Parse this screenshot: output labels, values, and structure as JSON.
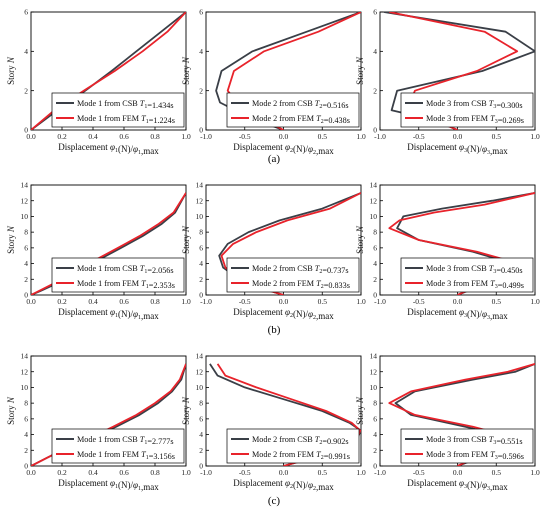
{
  "colors": {
    "csb": "#3a3f47",
    "fem": "#e8232b"
  },
  "chart_data": [
    {
      "type": "line",
      "panel": "a",
      "mode": 1,
      "ylabel": "Story N",
      "xlabel": "Displacement φ1(N)/φ1,max",
      "xlim": [
        0,
        1
      ],
      "ylim": [
        0,
        6
      ],
      "xticks": [
        "0.0",
        "0.2",
        "0.4",
        "0.6",
        "0.8",
        "1.0"
      ],
      "yticks": [
        "0",
        "2",
        "4",
        "6"
      ],
      "series": [
        {
          "name": "Mode 1 from CSB T1=1.434s",
          "kind": "csb",
          "x": [
            0,
            0.17,
            0.35,
            0.52,
            0.68,
            0.84,
            1.0
          ],
          "y": [
            0,
            1,
            2,
            3,
            4,
            5,
            6
          ]
        },
        {
          "name": "Mode 1 from FEM T1=1.224s",
          "kind": "fem",
          "x": [
            0,
            0.15,
            0.34,
            0.54,
            0.72,
            0.88,
            1.0
          ],
          "y": [
            0,
            1,
            2,
            3,
            4,
            5,
            6
          ]
        }
      ]
    },
    {
      "type": "line",
      "panel": "a",
      "mode": 2,
      "ylabel": "Story N",
      "xlabel": "Displacement φ2(N)/φ2,max",
      "xlim": [
        -1,
        1
      ],
      "ylim": [
        0,
        6
      ],
      "xticks": [
        "-1.0",
        "-0.5",
        "0.0",
        "0.5",
        "1.0"
      ],
      "yticks": [
        "0",
        "2",
        "4",
        "6"
      ],
      "series": [
        {
          "name": "Mode 2 from CSB T2=0.516s",
          "kind": "csb",
          "x": [
            0,
            -0.42,
            -0.82,
            -0.87,
            -0.8,
            -0.4,
            0.3,
            1.0
          ],
          "y": [
            0,
            0.6,
            1.4,
            2,
            3,
            4,
            5,
            6
          ]
        },
        {
          "name": "Mode 2 from FEM T2=0.438s",
          "kind": "fem",
          "x": [
            0,
            -0.3,
            -0.6,
            -0.72,
            -0.64,
            -0.25,
            0.45,
            1.0
          ],
          "y": [
            0,
            0.6,
            1.4,
            2,
            3,
            4,
            5,
            6
          ]
        }
      ]
    },
    {
      "type": "line",
      "panel": "a",
      "mode": 3,
      "ylabel": "Story N",
      "xlabel": "Displacement φ3(N)/φ3,max",
      "xlim": [
        -1,
        1
      ],
      "ylim": [
        0,
        6
      ],
      "xticks": [
        "-1.0",
        "-0.5",
        "0.0",
        "0.5",
        "1.0"
      ],
      "yticks": [
        "0",
        "2",
        "4",
        "6"
      ],
      "series": [
        {
          "name": "Mode 3 from CSB T3=0.300s",
          "kind": "csb",
          "x": [
            0,
            -0.3,
            -0.85,
            -0.78,
            0.32,
            1.0,
            0.62,
            -0.95
          ],
          "y": [
            0,
            0.5,
            1,
            2,
            3,
            4,
            5,
            6
          ]
        },
        {
          "name": "Mode 3 from FEM T3=0.269s",
          "kind": "fem",
          "x": [
            0,
            -0.3,
            -0.65,
            -0.55,
            0.25,
            0.77,
            0.35,
            -0.88
          ],
          "y": [
            0,
            0.5,
            1,
            2,
            3,
            4,
            5,
            6
          ]
        }
      ]
    },
    {
      "type": "line",
      "panel": "b",
      "mode": 1,
      "ylabel": "Story N",
      "xlabel": "Displacement φ1(N)/φ1,max",
      "xlim": [
        0,
        1
      ],
      "ylim": [
        0,
        14
      ],
      "xticks": [
        "0.0",
        "0.2",
        "0.4",
        "0.6",
        "0.8",
        "1.0"
      ],
      "yticks": [
        "0",
        "2",
        "4",
        "6",
        "8",
        "10",
        "12",
        "14"
      ],
      "series": [
        {
          "name": "Mode 1 from CSB T1=2.056s",
          "kind": "csb",
          "x": [
            0,
            0.06,
            0.17,
            0.3,
            0.44,
            0.58,
            0.72,
            0.84,
            0.93,
            1.0
          ],
          "y": [
            0,
            0.5,
            1.5,
            3,
            4.5,
            6,
            7.5,
            9,
            10.5,
            13
          ]
        },
        {
          "name": "Mode 1 from FEM T1=2.353s",
          "kind": "fem",
          "x": [
            0,
            0.05,
            0.15,
            0.28,
            0.42,
            0.56,
            0.7,
            0.82,
            0.92,
            1.0
          ],
          "y": [
            0,
            0.5,
            1.5,
            3,
            4.5,
            6,
            7.5,
            9,
            10.5,
            13
          ]
        }
      ]
    },
    {
      "type": "line",
      "panel": "b",
      "mode": 2,
      "ylabel": "Story N",
      "xlabel": "Displacement φ2(N)/φ2,max",
      "xlim": [
        -1,
        1
      ],
      "ylim": [
        0,
        14
      ],
      "xticks": [
        "-1.0",
        "-0.5",
        "0.0",
        "0.5",
        "1.0"
      ],
      "yticks": [
        "0",
        "2",
        "4",
        "6",
        "8",
        "10",
        "12",
        "14"
      ],
      "series": [
        {
          "name": "Mode 2 from CSB T2=0.737s",
          "kind": "csb",
          "x": [
            0,
            -0.5,
            -0.78,
            -0.83,
            -0.72,
            -0.45,
            -0.05,
            0.5,
            1.0
          ],
          "y": [
            0,
            1.5,
            3.5,
            5,
            6.5,
            8,
            9.5,
            11,
            13
          ]
        },
        {
          "name": "Mode 2 from FEM T2=0.833s",
          "kind": "fem",
          "x": [
            0,
            -0.5,
            -0.75,
            -0.8,
            -0.65,
            -0.35,
            0.05,
            0.6,
            1.0
          ],
          "y": [
            0,
            1.5,
            3.5,
            5,
            6.5,
            8,
            9.5,
            11,
            13
          ]
        }
      ]
    },
    {
      "type": "line",
      "panel": "b",
      "mode": 3,
      "ylabel": "Story N",
      "xlabel": "Displacement φ3(N)/φ3,max",
      "xlim": [
        -1,
        1
      ],
      "ylim": [
        0,
        14
      ],
      "xticks": [
        "-1.0",
        "-0.5",
        "0.0",
        "0.5",
        "1.0"
      ],
      "yticks": [
        "0",
        "2",
        "4",
        "6",
        "8",
        "10",
        "12",
        "14"
      ],
      "series": [
        {
          "name": "Mode 3 from CSB T3=0.450s",
          "kind": "csb",
          "x": [
            0,
            0.5,
            0.72,
            0.2,
            -0.5,
            -0.78,
            -0.7,
            -0.2,
            0.45,
            1.0
          ],
          "y": [
            0,
            2,
            4,
            5.5,
            7,
            8.5,
            10,
            11,
            12,
            13
          ]
        },
        {
          "name": "Mode 3 from FEM T3=0.499s",
          "kind": "fem",
          "x": [
            0,
            0.45,
            0.8,
            0.25,
            -0.5,
            -0.88,
            -0.75,
            -0.3,
            0.35,
            1.0
          ],
          "y": [
            0,
            2,
            4,
            5.5,
            7,
            8.5,
            9.5,
            10.5,
            11.5,
            13
          ]
        }
      ]
    },
    {
      "type": "line",
      "panel": "c",
      "mode": 1,
      "ylabel": "Story N",
      "xlabel": "Displacement φ1(N)/φ1,max",
      "xlim": [
        0,
        1
      ],
      "ylim": [
        0,
        14
      ],
      "xticks": [
        "0.0",
        "0.2",
        "0.4",
        "0.6",
        "0.8",
        "1.0"
      ],
      "yticks": [
        "0",
        "2",
        "4",
        "6",
        "8",
        "10",
        "12",
        "14"
      ],
      "series": [
        {
          "name": "Mode 1 from CSB T1=2.777s",
          "kind": "csb",
          "x": [
            0,
            0.1,
            0.22,
            0.38,
            0.55,
            0.7,
            0.82,
            0.91,
            0.97,
            1.0
          ],
          "y": [
            0,
            1,
            2.2,
            3.5,
            5,
            6.5,
            8,
            9.5,
            11,
            13
          ]
        },
        {
          "name": "Mode 1 from FEM T1=3.156s",
          "kind": "fem",
          "x": [
            0,
            0.1,
            0.22,
            0.37,
            0.53,
            0.68,
            0.8,
            0.9,
            0.96,
            1.0
          ],
          "y": [
            0,
            1,
            2.2,
            3.5,
            5,
            6.5,
            8,
            9.5,
            11,
            13
          ]
        }
      ]
    },
    {
      "type": "line",
      "panel": "c",
      "mode": 2,
      "ylabel": "Story N",
      "xlabel": "Displacement φ2(N)/φ2,max",
      "xlim": [
        -1,
        1
      ],
      "ylim": [
        0,
        14
      ],
      "xticks": [
        "-1.0",
        "-0.5",
        "0.0",
        "0.5",
        "1.0"
      ],
      "yticks": [
        "0",
        "2",
        "4",
        "6",
        "8",
        "10",
        "12",
        "14"
      ],
      "series": [
        {
          "name": "Mode 2 from CSB T2=0.902s",
          "kind": "csb",
          "x": [
            0,
            0.55,
            0.95,
            1.0,
            0.85,
            0.5,
            0.0,
            -0.5,
            -0.85,
            -0.95
          ],
          "y": [
            0,
            1.5,
            3.5,
            4.5,
            5.5,
            7,
            8.5,
            10,
            11.5,
            13
          ]
        },
        {
          "name": "Mode 2 from FEM T2=0.991s",
          "kind": "fem",
          "x": [
            0,
            0.55,
            0.95,
            0.99,
            0.88,
            0.55,
            0.1,
            -0.35,
            -0.75,
            -0.85
          ],
          "y": [
            0,
            1.5,
            3.5,
            4.5,
            5.5,
            7,
            8.5,
            10,
            11.5,
            13
          ]
        }
      ]
    },
    {
      "type": "line",
      "panel": "c",
      "mode": 3,
      "ylabel": "Story N",
      "xlabel": "Displacement φ3(N)/φ3,max",
      "xlim": [
        -1,
        1
      ],
      "ylim": [
        0,
        14
      ],
      "xticks": [
        "-1.0",
        "-0.5",
        "0.0",
        "0.5",
        "1.0"
      ],
      "yticks": [
        "0",
        "2",
        "4",
        "6",
        "8",
        "10",
        "12",
        "14"
      ],
      "series": [
        {
          "name": "Mode 3 from CSB T3=0.551s",
          "kind": "csb",
          "x": [
            0,
            0.55,
            0.75,
            0.1,
            -0.6,
            -0.8,
            -0.55,
            0.2,
            0.75,
            1.0
          ],
          "y": [
            0,
            2,
            3.5,
            5,
            6.5,
            8,
            9.5,
            11,
            12,
            13
          ]
        },
        {
          "name": "Mode 3 from FEM T3=0.596s",
          "kind": "fem",
          "x": [
            0,
            0.45,
            0.78,
            0.2,
            -0.55,
            -0.88,
            -0.6,
            0.1,
            0.65,
            1.0
          ],
          "y": [
            0,
            2,
            3.5,
            5,
            6.5,
            8,
            9.5,
            11,
            12,
            13
          ]
        }
      ]
    }
  ],
  "captions": [
    "(a)",
    "(b)",
    "(c)"
  ]
}
